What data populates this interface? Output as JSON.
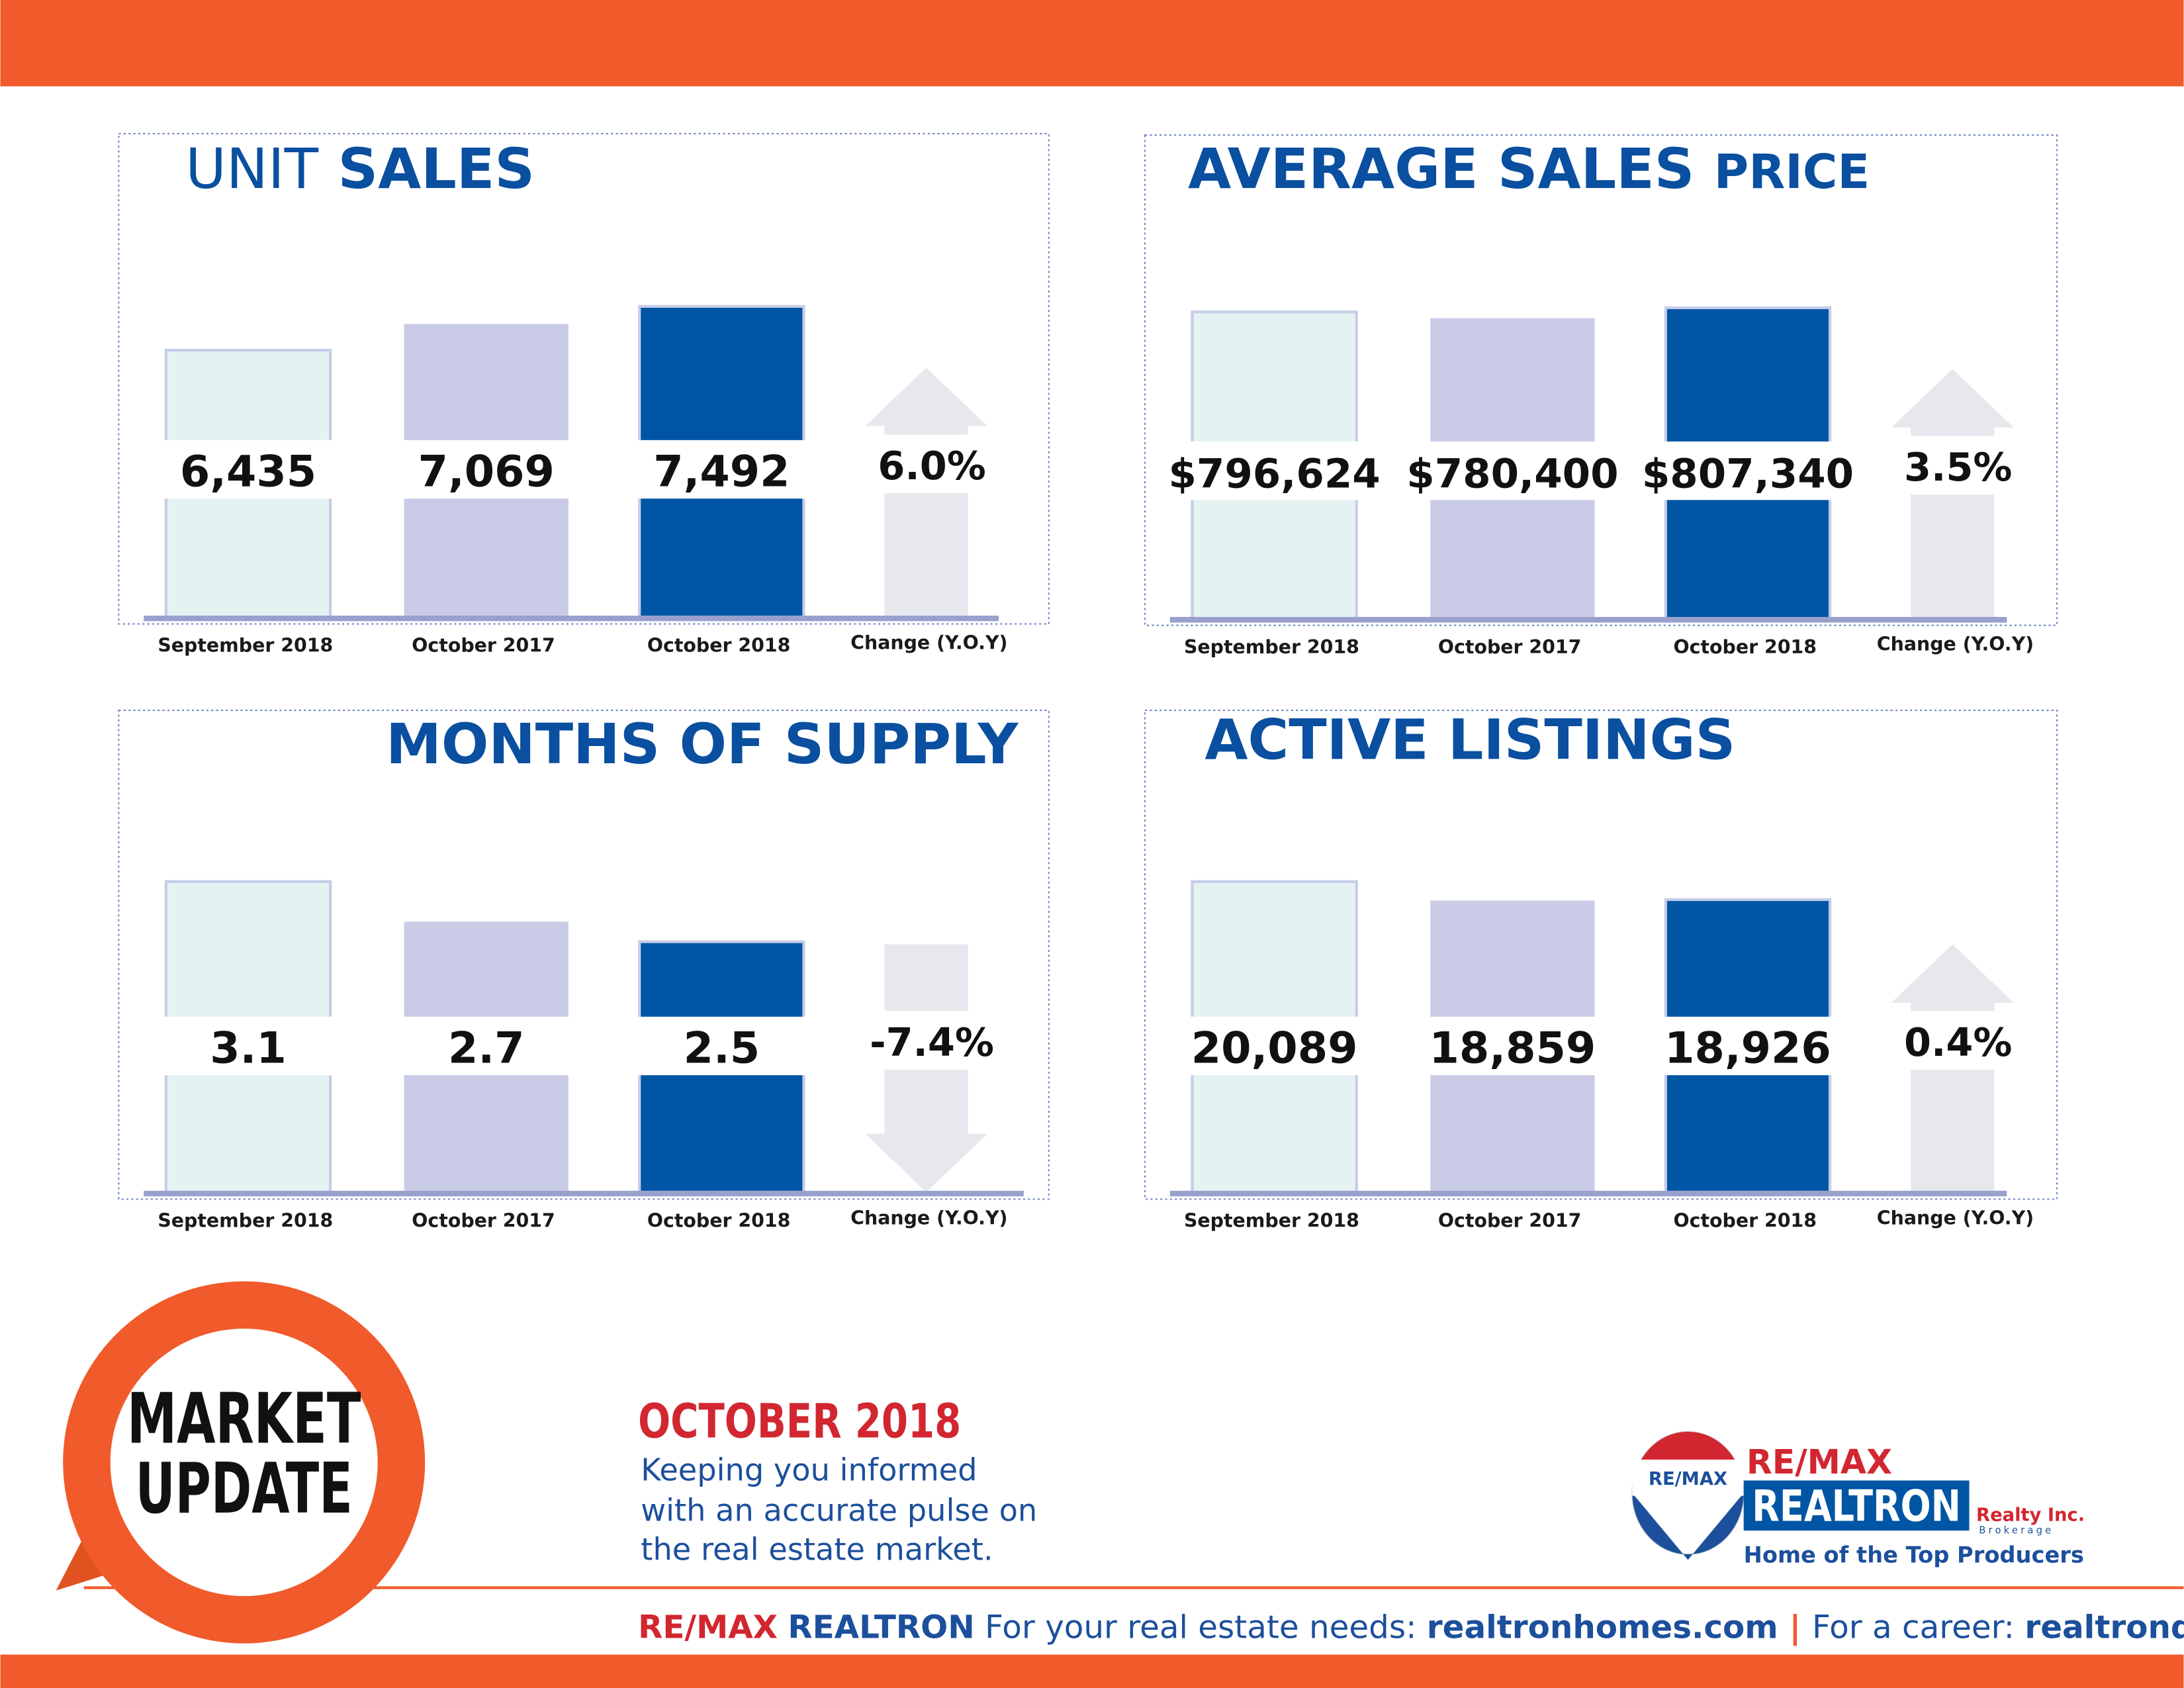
{
  "chart_data": [
    {
      "type": "bar",
      "title": [
        "UNIT",
        "SALES"
      ],
      "categories": [
        "September 2018",
        "October 2017",
        "October 2018"
      ],
      "values": [
        6435,
        7069,
        7492
      ],
      "value_labels": [
        "6,435",
        "7,069",
        "7,492"
      ],
      "colors": [
        "#e4f3f2",
        "#c9cbe7",
        "#0055a4"
      ],
      "change": {
        "label": "Change (Y.O.Y)",
        "value": 6.0,
        "value_label": "6.0%"
      }
    },
    {
      "type": "bar",
      "title": [
        "AVERAGE SALES",
        "PRICE"
      ],
      "categories": [
        "September 2018",
        "October 2017",
        "October 2018"
      ],
      "values": [
        796624,
        780400,
        807340
      ],
      "value_labels": [
        "$796,624",
        "$780,400",
        "$807,340"
      ],
      "colors": [
        "#e4f3f2",
        "#c9cbe7",
        "#0055a4"
      ],
      "change": {
        "label": "Change (Y.O.Y)",
        "value": 3.5,
        "value_label": "3.5%"
      }
    },
    {
      "type": "bar",
      "title": [
        "MONTHS OF SUPPLY"
      ],
      "categories": [
        "September 2018",
        "October 2017",
        "October 2018"
      ],
      "values": [
        3.1,
        2.7,
        2.5
      ],
      "value_labels": [
        "3.1",
        "2.7",
        "2.5"
      ],
      "colors": [
        "#e4f3f2",
        "#c9cbe7",
        "#0055a4"
      ],
      "change": {
        "label": "Change (Y.O.Y)",
        "value": -7.4,
        "value_label": "-7.4%"
      }
    },
    {
      "type": "bar",
      "title": [
        "ACTIVE LISTINGS"
      ],
      "categories": [
        "September 2018",
        "October 2017",
        "October 2018"
      ],
      "values": [
        20089,
        18859,
        18926
      ],
      "value_labels": [
        "20,089",
        "18,859",
        "18,926"
      ],
      "colors": [
        "#e4f3f2",
        "#c9cbe7",
        "#0055a4"
      ],
      "change": {
        "label": "Change (Y.O.Y)",
        "value": 0.4,
        "value_label": "0.4%"
      }
    }
  ],
  "badge": [
    "MARKET",
    "UPDATE"
  ],
  "heading": "OCTOBER 2018",
  "tagline": [
    "Keeping you informed",
    "with an accurate pulse on",
    "the real estate market."
  ],
  "logo": {
    "balloon": "RE/MAX",
    "brand": "RE/MAX",
    "name": "REALTRON",
    "suffix": "Realty Inc.",
    "sub": "Brokerage",
    "slogan": "Home of the Top Producers"
  },
  "footer": {
    "brand": "RE/MAX",
    "name": "REALTRON",
    "needs": "For your real estate needs:",
    "needs_url": "realtronhomes.com",
    "career": "For a career:",
    "career_url": "realtrondirect.com"
  }
}
